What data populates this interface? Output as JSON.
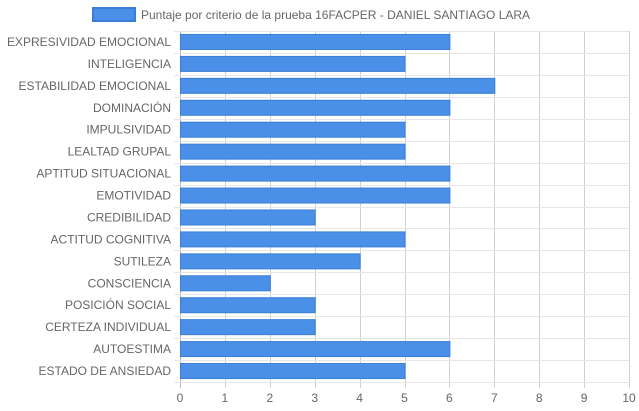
{
  "chart_data": {
    "type": "bar",
    "orientation": "horizontal",
    "categories": [
      "EXPRESIVIDAD EMOCIONAL",
      "INTELIGENCIA",
      "ESTABILIDAD EMOCIONAL",
      "DOMINACIÓN",
      "IMPULSIVIDAD",
      "LEALTAD GRUPAL",
      "APTITUD SITUACIONAL",
      "EMOTIVIDAD",
      "CREDIBILIDAD",
      "ACTITUD COGNITIVA",
      "SUTILEZA",
      "CONSCIENCIA",
      "POSICIÓN SOCIAL",
      "CERTEZA INDIVIDUAL",
      "AUTOESTIMA",
      "ESTADO DE ANSIEDAD"
    ],
    "series": [
      {
        "name": "Puntaje por criterio de la prueba 16FACPER - DANIEL SANTIAGO LARA",
        "values": [
          6,
          5,
          7,
          6,
          5,
          5,
          6,
          6,
          3,
          5,
          4,
          2,
          3,
          3,
          6,
          5
        ],
        "color": "#4a90e8",
        "border_color": "#3a7fd5"
      }
    ],
    "xlim": [
      0,
      10
    ],
    "x_ticks": [
      0,
      1,
      2,
      3,
      4,
      5,
      6,
      7,
      8,
      9,
      10
    ],
    "title": "",
    "xlabel": "",
    "ylabel": "",
    "grid": true,
    "legend_position": "top-center"
  }
}
